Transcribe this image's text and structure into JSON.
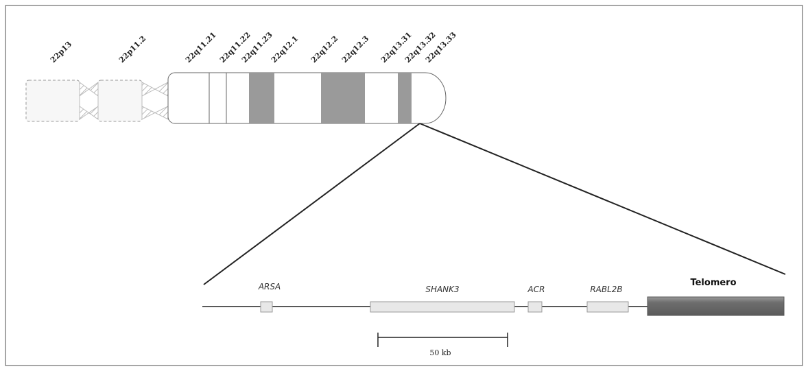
{
  "bands": [
    "22p13",
    "22p11.2",
    "22q11.21",
    "22q11.22",
    "22q11.23",
    "22q12.1",
    "22q12.2",
    "22q12.3",
    "22q13.31",
    "22q13.32",
    "22q13.33"
  ],
  "genes": [
    "ARSA",
    "SHANK3",
    "ACR",
    "RABL2B"
  ],
  "telomere": "Telomero",
  "scale_label": "50 kb"
}
